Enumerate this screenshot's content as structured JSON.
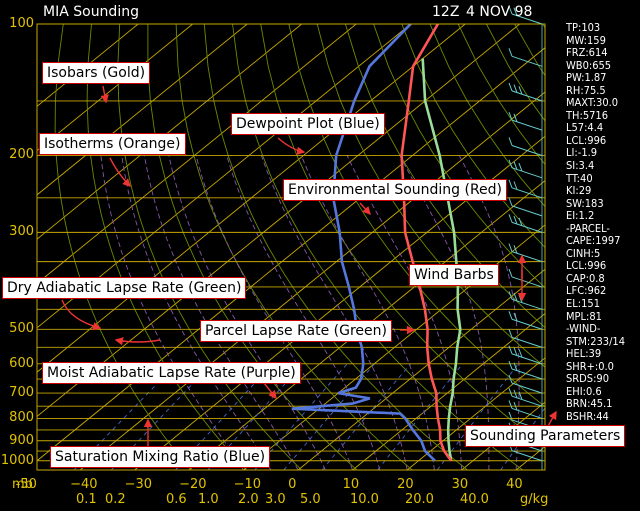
{
  "header": {
    "station": "MIA Sounding",
    "time": "12Z",
    "date": "4 NOV 98"
  },
  "parameters": [
    "TP:103",
    "MW:159",
    "FRZ:614",
    "WB0:655",
    "PW:1.87",
    "RH:75.5",
    "MAXT:30.0",
    "TH:5716",
    "L57:4.4",
    "LCL:996",
    "LI:-1.9",
    "SI:3.4",
    "TT:40",
    "KI:29",
    "SW:183",
    "EI:1.2",
    "-PARCEL-",
    "CAPE:1997",
    "CINH:5",
    "LCL:996",
    "CAP:0.8",
    "LFC:962",
    "EL:151",
    "MPL:81",
    "-WIND-",
    "STM:233/14",
    "HEL:39",
    "SHR+:0.0",
    "SRDS:90",
    "EHI:0.6",
    "BRN:45.1",
    "BSHR:44"
  ],
  "callouts": {
    "isobars": "Isobars (Gold)",
    "isotherms": "Isotherms (Orange)",
    "dewpoint": "Dewpoint Plot (Blue)",
    "environmental": "Environmental Sounding (Red)",
    "dry_adiabatic": "Dry Adiabatic Lapse Rate (Green)",
    "wind_barbs": "Wind Barbs",
    "parcel": "Parcel Lapse Rate (Green)",
    "moist_adiabatic": "Moist Adiabatic Lapse Rate (Purple)",
    "mixing_ratio": "Saturation Mixing Ratio (Blue)",
    "sounding_params": "Sounding Parameters"
  },
  "colors": {
    "isobar": "#c8a800",
    "isotherm": "#c8a800",
    "dry_adiabat": "#6a8a00",
    "moist_adiabat": "#8855aa",
    "mixing_ratio": "#4466cc",
    "environmental": "#ff5555",
    "dewpoint": "#5577dd",
    "parcel": "#99dd99",
    "wind": "#66cccc",
    "callout_border": "#cc0000",
    "arrow": "#ee3333"
  },
  "chart_data": {
    "type": "skew-t",
    "y_axis_prefix": "mb",
    "x_axis_unit": "g/kg",
    "pressure_levels": [
      100,
      200,
      300,
      400,
      500,
      600,
      700,
      800,
      900,
      1000
    ],
    "temperature_ticks": [
      -50,
      -40,
      -30,
      -20,
      -10,
      0,
      10,
      20,
      30,
      40
    ],
    "temperature_tick_labels": [
      "-50",
      "−40",
      "−30",
      "−20",
      "−10",
      "0",
      "10",
      "20",
      "30",
      "40"
    ],
    "mixing_ratio_labels": [
      "0.1",
      "0.2",
      "0.6",
      "1.0",
      "2.0",
      "3.0",
      "5.0",
      "10.0",
      "20.0",
      "40.0"
    ],
    "environmental_sounding": [
      [
        1000,
        26
      ],
      [
        950,
        22.5
      ],
      [
        900,
        19.5
      ],
      [
        850,
        17
      ],
      [
        800,
        14
      ],
      [
        750,
        11
      ],
      [
        700,
        8
      ],
      [
        650,
        4
      ],
      [
        600,
        0
      ],
      [
        550,
        -4
      ],
      [
        500,
        -8
      ],
      [
        450,
        -13
      ],
      [
        400,
        -19
      ],
      [
        350,
        -26
      ],
      [
        300,
        -34
      ],
      [
        250,
        -42
      ],
      [
        200,
        -52
      ],
      [
        150,
        -63
      ],
      [
        125,
        -70
      ],
      [
        100,
        -75
      ]
    ],
    "dewpoint_sounding": [
      [
        1000,
        23
      ],
      [
        950,
        19
      ],
      [
        900,
        16
      ],
      [
        850,
        12
      ],
      [
        800,
        8
      ],
      [
        780,
        6
      ],
      [
        760,
        -15
      ],
      [
        740,
        -5
      ],
      [
        720,
        -3
      ],
      [
        700,
        -10
      ],
      [
        680,
        -8
      ],
      [
        650,
        -9
      ],
      [
        600,
        -12
      ],
      [
        550,
        -16
      ],
      [
        500,
        -21
      ],
      [
        450,
        -26
      ],
      [
        400,
        -32
      ],
      [
        350,
        -39
      ],
      [
        300,
        -46
      ],
      [
        250,
        -55
      ],
      [
        200,
        -64
      ],
      [
        150,
        -73
      ],
      [
        125,
        -78
      ],
      [
        100,
        -80
      ]
    ],
    "parcel_path": [
      [
        1000,
        26
      ],
      [
        950,
        23.5
      ],
      [
        900,
        21
      ],
      [
        850,
        18.5
      ],
      [
        800,
        16
      ],
      [
        750,
        13.5
      ],
      [
        700,
        11
      ],
      [
        650,
        8
      ],
      [
        600,
        5
      ],
      [
        550,
        1.5
      ],
      [
        500,
        -2
      ],
      [
        450,
        -7
      ],
      [
        400,
        -12
      ],
      [
        350,
        -18
      ],
      [
        300,
        -25
      ],
      [
        250,
        -34
      ],
      [
        200,
        -45
      ],
      [
        150,
        -60
      ],
      [
        120,
        -70
      ]
    ],
    "wind_barb_pressures": [
      1000,
      950,
      900,
      850,
      800,
      750,
      700,
      650,
      600,
      550,
      500,
      450,
      400,
      350,
      300,
      275,
      250,
      225,
      200,
      175,
      150,
      125,
      100
    ]
  }
}
